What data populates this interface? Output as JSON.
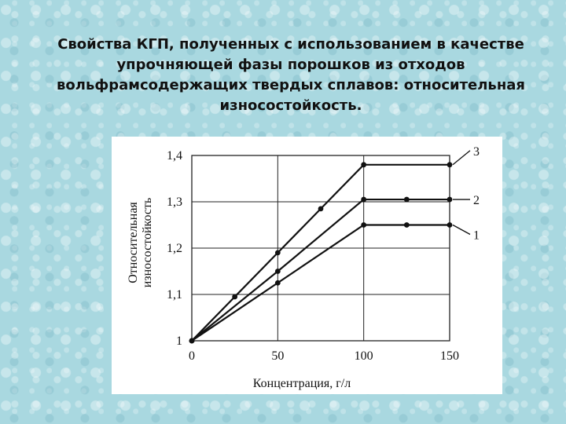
{
  "slide": {
    "title_lines": [
      "Свойства КГП, полученных с использованием в качестве",
      "упрочняющей фазы порошков из отходов",
      "вольфрамсодержащих твердых сплавов: относительная",
      "износостойкость."
    ]
  },
  "colors": {
    "background": "#a9d8e0",
    "ink": "#111111",
    "grid": "#222222"
  },
  "chart_data": {
    "type": "line",
    "title": "",
    "xlabel": "Концентрация, г/л",
    "ylabel_lines": [
      "Относительная",
      "износостойкость"
    ],
    "x": [
      0,
      50,
      100,
      150
    ],
    "x_tick_labels": [
      "0",
      "50",
      "100",
      "150"
    ],
    "y_ticks": [
      1.0,
      1.1,
      1.2,
      1.3,
      1.4
    ],
    "y_tick_labels": [
      "1",
      "1,1",
      "1,2",
      "1,3",
      "1,4"
    ],
    "xlim": [
      0,
      150
    ],
    "ylim": [
      1.0,
      1.4
    ],
    "grid": true,
    "series": [
      {
        "name": "1",
        "x": [
          0,
          50,
          100,
          125,
          150
        ],
        "values": [
          1.0,
          1.125,
          1.25,
          1.25,
          1.25
        ]
      },
      {
        "name": "2",
        "x": [
          0,
          50,
          100,
          125,
          150
        ],
        "values": [
          1.0,
          1.15,
          1.305,
          1.305,
          1.305
        ]
      },
      {
        "name": "3",
        "x": [
          0,
          25,
          50,
          75,
          100,
          150
        ],
        "values": [
          1.0,
          1.095,
          1.19,
          1.285,
          1.38,
          1.38
        ]
      }
    ]
  }
}
